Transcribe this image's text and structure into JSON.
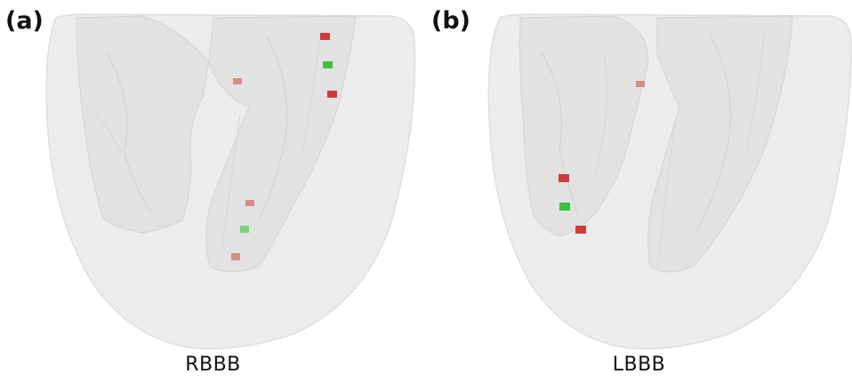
{
  "panels": [
    {
      "id": "a",
      "letter": "(a)",
      "caption": "RBBB"
    },
    {
      "id": "b",
      "letter": "(b)",
      "caption": "LBBB"
    }
  ],
  "colors": {
    "myocardium": "#ebebeb",
    "cavity": "#e1e1e1",
    "cavity_edge": "#cfcfcf",
    "marker_red": "#cc3c3c",
    "marker_red_faint": "#d98a8a",
    "marker_green": "#3fbf3f"
  }
}
